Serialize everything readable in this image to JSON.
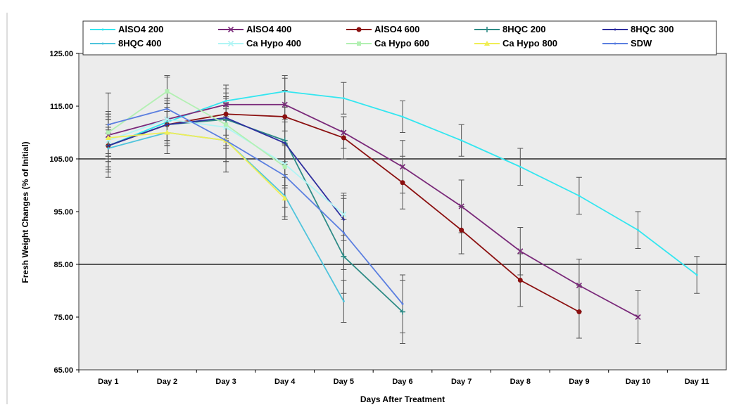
{
  "chart_data": {
    "type": "line",
    "title": "",
    "xlabel": "Days After Treatment",
    "ylabel": "Fresh Weight Changes (% of Initial)",
    "categories": [
      "Day 1",
      "Day 2",
      "Day 3",
      "Day 4",
      "Day 5",
      "Day 6",
      "Day 7",
      "Day 8",
      "Day 9",
      "Day 10",
      "Day 11"
    ],
    "ylim": [
      65,
      125
    ],
    "yticks": [
      "65.00",
      "75.00",
      "85.00",
      "95.00",
      "105.00",
      "115.00",
      "125.00"
    ],
    "major_gridlines": [
      85,
      105
    ],
    "legend_position": "top",
    "series": [
      {
        "name": "AlSO4 200",
        "color": "#33e6f0",
        "marker": "none",
        "values": [
          107.5,
          112.0,
          116.0,
          117.8,
          116.5,
          113.0,
          108.5,
          103.5,
          98.0,
          91.5,
          83.0
        ],
        "errors": [
          3,
          4,
          3,
          3,
          3,
          3,
          3,
          3.5,
          3.5,
          3.5,
          3.5
        ]
      },
      {
        "name": "AlSO4 400",
        "color": "#7a2a7a",
        "marker": "x",
        "values": [
          109.5,
          112.5,
          115.3,
          115.3,
          110.0,
          103.5,
          96.0,
          87.5,
          81.0,
          75.0,
          null
        ],
        "errors": [
          4,
          4,
          3,
          5,
          3,
          5,
          5,
          4.5,
          5,
          5,
          null
        ]
      },
      {
        "name": "AlSO4 600",
        "color": "#8b1010",
        "marker": "circle",
        "values": [
          107.5,
          111.5,
          113.5,
          113.0,
          109.0,
          100.5,
          91.5,
          82.0,
          76.0,
          null,
          null
        ],
        "errors": [
          5,
          4,
          4,
          5,
          4,
          5,
          4.5,
          5,
          5,
          null,
          null
        ]
      },
      {
        "name": "8HQC 200",
        "color": "#2e8b86",
        "marker": "plus",
        "values": [
          107.5,
          111.5,
          112.5,
          108.5,
          86.5,
          76.0,
          null,
          null,
          null,
          null,
          null
        ],
        "errors": [
          6,
          4,
          4,
          4,
          7,
          6,
          null,
          null,
          null,
          null,
          null
        ]
      },
      {
        "name": "8HQC 300",
        "color": "#2e2e9e",
        "marker": "none",
        "values": [
          107.5,
          111.5,
          112.8,
          108.0,
          93.5,
          null,
          null,
          null,
          null,
          null,
          null
        ],
        "errors": [
          4,
          4,
          4,
          4,
          4,
          null,
          null,
          null,
          null,
          null,
          null
        ]
      },
      {
        "name": "8HQC 400",
        "color": "#4fc4dc",
        "marker": "none",
        "values": [
          107.0,
          110.0,
          108.5,
          98.0,
          78.0,
          null,
          null,
          null,
          null,
          null,
          null
        ],
        "errors": [
          4,
          4,
          4,
          4,
          4,
          null,
          null,
          null,
          null,
          null,
          null
        ]
      },
      {
        "name": "Ca Hypo 400",
        "color": "#b0f5f5",
        "marker": "x",
        "values": [
          108.5,
          112.5,
          111.0,
          104.0,
          94.5,
          null,
          null,
          null,
          null,
          null,
          null
        ],
        "errors": [
          4,
          4,
          4,
          4,
          4,
          null,
          null,
          null,
          null,
          null,
          null
        ]
      },
      {
        "name": "Ca Hypo 600",
        "color": "#b2f0b2",
        "marker": "square",
        "values": [
          110.0,
          117.8,
          111.5,
          103.5,
          null,
          null,
          null,
          null,
          null,
          null,
          null
        ],
        "errors": [
          4,
          3,
          4,
          4,
          null,
          null,
          null,
          null,
          null,
          null,
          null
        ]
      },
      {
        "name": "Ca Hypo 800",
        "color": "#f0ee55",
        "marker": "triangle",
        "values": [
          109.0,
          110.0,
          108.5,
          97.5,
          null,
          null,
          null,
          null,
          null,
          null,
          null
        ],
        "errors": [
          4,
          4,
          4,
          4,
          null,
          null,
          null,
          null,
          null,
          null,
          null
        ]
      },
      {
        "name": "SDW",
        "color": "#5b7fe0",
        "marker": "none",
        "values": [
          111.5,
          114.5,
          108.5,
          101.8,
          91.0,
          77.5,
          null,
          null,
          null,
          null,
          null
        ],
        "errors": [
          6,
          6,
          6,
          6,
          7,
          5.5,
          null,
          null,
          null,
          null,
          null
        ]
      }
    ]
  }
}
